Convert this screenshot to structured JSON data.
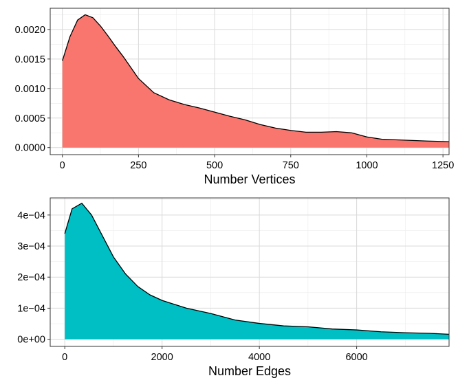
{
  "chart_data": [
    {
      "type": "area",
      "title": "",
      "xlabel": "Number Vertices",
      "ylabel": "",
      "xlim": [
        -40,
        1270
      ],
      "ylim": [
        -0.00012,
        0.00236
      ],
      "xticks": [
        0,
        250,
        500,
        750,
        1000,
        1250
      ],
      "xtick_labels": [
        "0",
        "250",
        "500",
        "750",
        "1000",
        "1250"
      ],
      "yticks": [
        0,
        0.0005,
        0.001,
        0.0015,
        0.002
      ],
      "ytick_labels": [
        "0.0000",
        "0.0005",
        "0.0010",
        "0.0015",
        "0.0020"
      ],
      "grid": true,
      "series": [
        {
          "color": "#F8766D",
          "x": [
            0,
            25,
            50,
            75,
            100,
            125,
            150,
            175,
            200,
            250,
            300,
            350,
            400,
            450,
            500,
            550,
            600,
            650,
            700,
            750,
            800,
            850,
            900,
            950,
            1000,
            1050,
            1100,
            1150,
            1200,
            1270
          ],
          "y": [
            0.00147,
            0.00188,
            0.00216,
            0.00225,
            0.0022,
            0.00206,
            0.00189,
            0.00171,
            0.00154,
            0.00117,
            0.00093,
            0.00081,
            0.00073,
            0.00067,
            0.0006,
            0.00053,
            0.00047,
            0.00039,
            0.00033,
            0.00029,
            0.00026,
            0.00026,
            0.00027,
            0.00025,
            0.00018,
            0.00014,
            0.00013,
            0.00012,
            0.00011,
            0.0001
          ]
        }
      ]
    },
    {
      "type": "area",
      "title": "",
      "xlabel": "Number Edges",
      "ylabel": "",
      "xlim": [
        -300,
        7900
      ],
      "ylim": [
        -2.3e-05,
        0.000455
      ],
      "xticks": [
        0,
        2000,
        4000,
        6000
      ],
      "xtick_labels": [
        "0",
        "2000",
        "4000",
        "6000"
      ],
      "yticks": [
        0,
        0.0001,
        0.0002,
        0.0003,
        0.0004
      ],
      "ytick_labels": [
        "0e+00",
        "1e−04",
        "2e−04",
        "3e−04",
        "4e−04"
      ],
      "grid": true,
      "series": [
        {
          "color": "#00BFC4",
          "x": [
            0,
            150,
            350,
            550,
            750,
            1000,
            1250,
            1500,
            1750,
            2000,
            2500,
            3000,
            3500,
            4000,
            4500,
            5000,
            5500,
            6000,
            6500,
            7000,
            7500,
            7900
          ],
          "y": [
            0.00034,
            0.00042,
            0.000438,
            0.0004,
            0.00034,
            0.000265,
            0.00021,
            0.00017,
            0.000143,
            0.000125,
            0.0001,
            8.3e-05,
            6.2e-05,
            5.1e-05,
            4.3e-05,
            4e-05,
            3.3e-05,
            3e-05,
            2.4e-05,
            2.1e-05,
            1.9e-05,
            1.6e-05
          ]
        }
      ]
    }
  ]
}
